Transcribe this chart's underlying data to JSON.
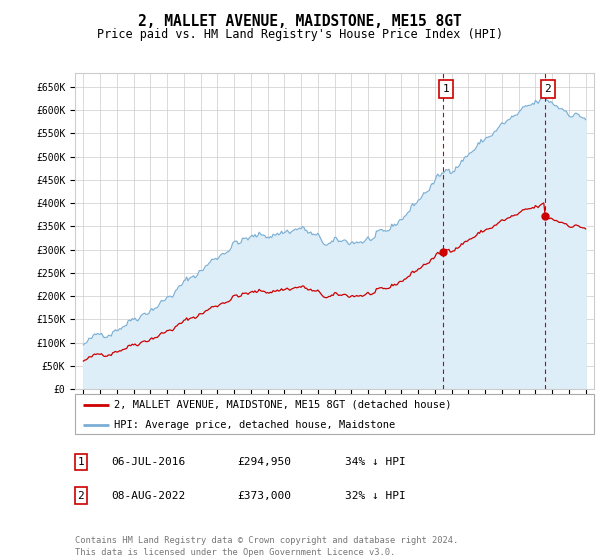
{
  "title": "2, MALLET AVENUE, MAIDSTONE, ME15 8GT",
  "subtitle": "Price paid vs. HM Land Registry's House Price Index (HPI)",
  "ylabel_ticks": [
    "£0",
    "£50K",
    "£100K",
    "£150K",
    "£200K",
    "£250K",
    "£300K",
    "£350K",
    "£400K",
    "£450K",
    "£500K",
    "£550K",
    "£600K",
    "£650K"
  ],
  "ytick_vals": [
    0,
    50000,
    100000,
    150000,
    200000,
    250000,
    300000,
    350000,
    400000,
    450000,
    500000,
    550000,
    600000,
    650000
  ],
  "xlim_start": 1994.5,
  "xlim_end": 2025.5,
  "ylim": [
    0,
    680000
  ],
  "sale1_date": 2016.51,
  "sale1_price": 294950,
  "sale2_date": 2022.6,
  "sale2_price": 373000,
  "sale1_date_str": "06-JUL-2016",
  "sale1_price_str": "£294,950",
  "sale1_hpi_str": "34% ↓ HPI",
  "sale2_date_str": "08-AUG-2022",
  "sale2_price_str": "£373,000",
  "sale2_hpi_str": "32% ↓ HPI",
  "legend_line1": "2, MALLET AVENUE, MAIDSTONE, ME15 8GT (detached house)",
  "legend_line2": "HPI: Average price, detached house, Maidstone",
  "footer": "Contains HM Land Registry data © Crown copyright and database right 2024.\nThis data is licensed under the Open Government Licence v3.0.",
  "hpi_color": "#7aaed4",
  "hpi_fill_color": "#ddeef8",
  "sale_color": "#cc0000",
  "grid_color": "#cccccc",
  "background_color": "#ffffff"
}
